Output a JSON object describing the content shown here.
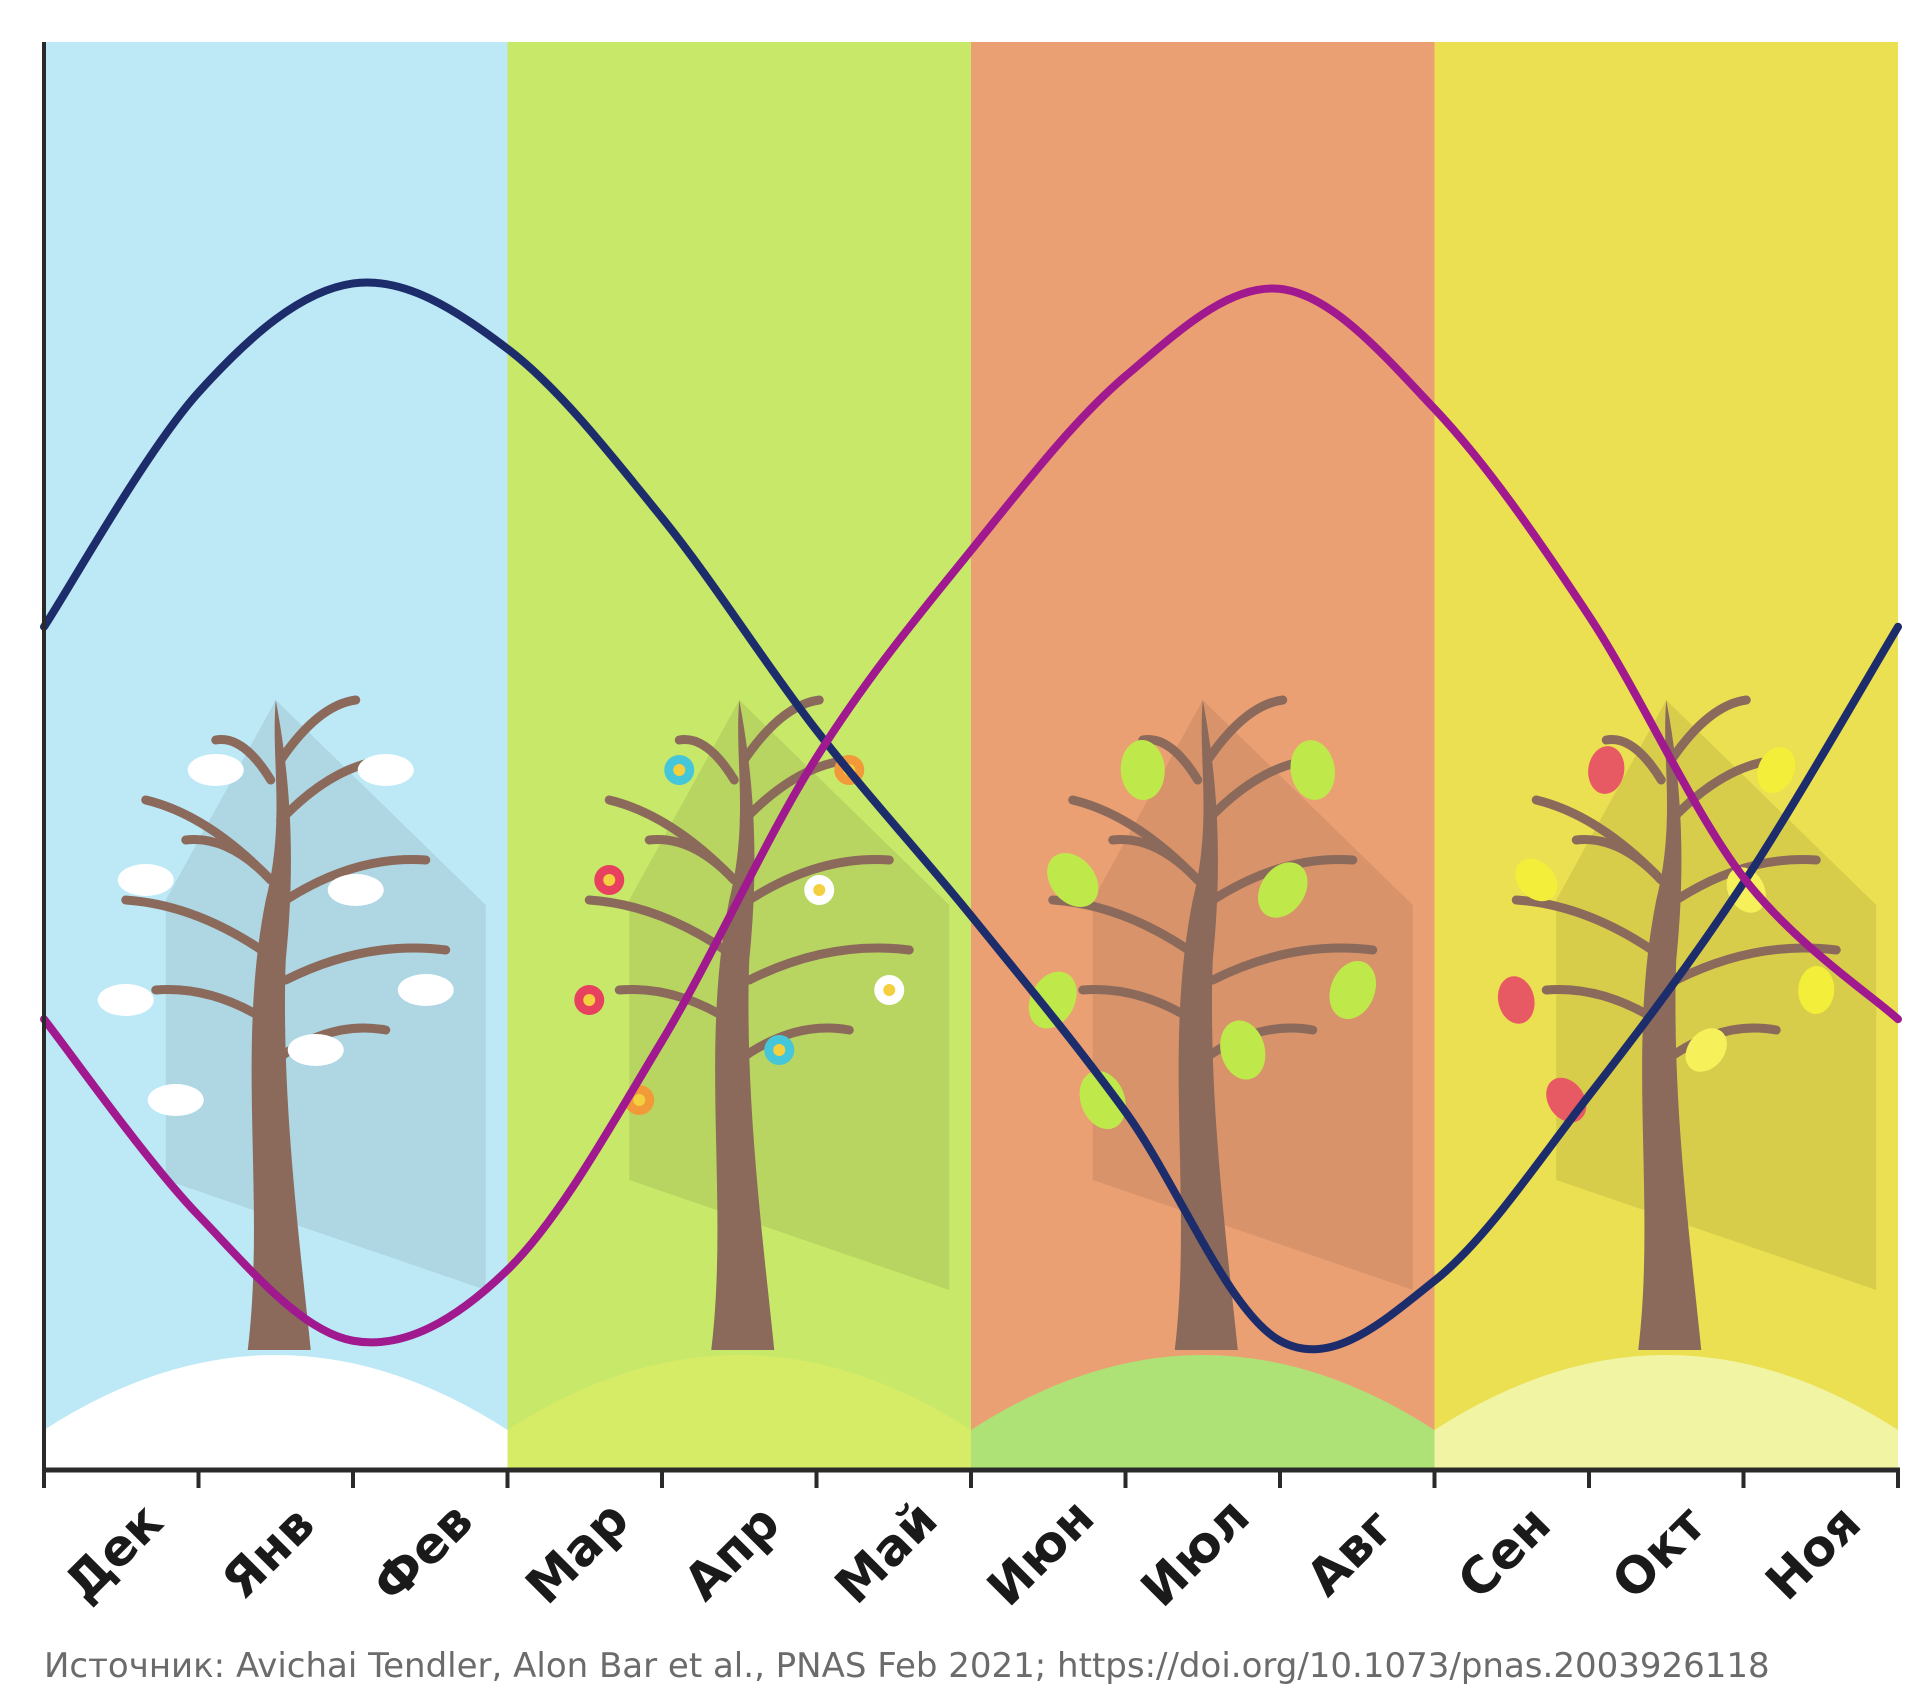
{
  "chart_data": {
    "type": "line",
    "categories": [
      "Дек",
      "Янв",
      "Фев",
      "Мар",
      "Апр",
      "Май",
      "Июн",
      "Июл",
      "Авг",
      "Сен",
      "Окт",
      "Ноя"
    ],
    "x": [
      0,
      1,
      2,
      3,
      4,
      5,
      6,
      7,
      8,
      9,
      10,
      11,
      12
    ],
    "series": [
      {
        "color": "#1d2d6b",
        "values": [
          0.36,
          0.79,
          0.99,
          0.87,
          0.56,
          0.17,
          -0.17,
          -0.53,
          -0.95,
          -0.84,
          -0.5,
          -0.11,
          0.36
        ]
      },
      {
        "color": "#a0198f",
        "values": [
          -0.36,
          -0.72,
          -0.95,
          -0.82,
          -0.4,
          0.12,
          0.5,
          0.82,
          0.98,
          0.76,
          0.38,
          -0.1,
          -0.36
        ]
      }
    ],
    "seasons": [
      {
        "from": 0,
        "to": 3,
        "color": "#bde9f7",
        "ground": "#ffffff"
      },
      {
        "from": 3,
        "to": 6,
        "color": "#c8e86a",
        "ground": "#d7ec66"
      },
      {
        "from": 6,
        "to": 9,
        "color": "#eba073",
        "ground": "#aee276"
      },
      {
        "from": 9,
        "to": 12,
        "color": "#ebdf52",
        "ground": "#f1f5a3"
      }
    ],
    "grid": false,
    "legend": "none"
  },
  "source_text": "Источник: Avichai Tendler, Alon Bar et al., PNAS Feb 2021; https://doi.org/10.1073/pnas.2003926118"
}
